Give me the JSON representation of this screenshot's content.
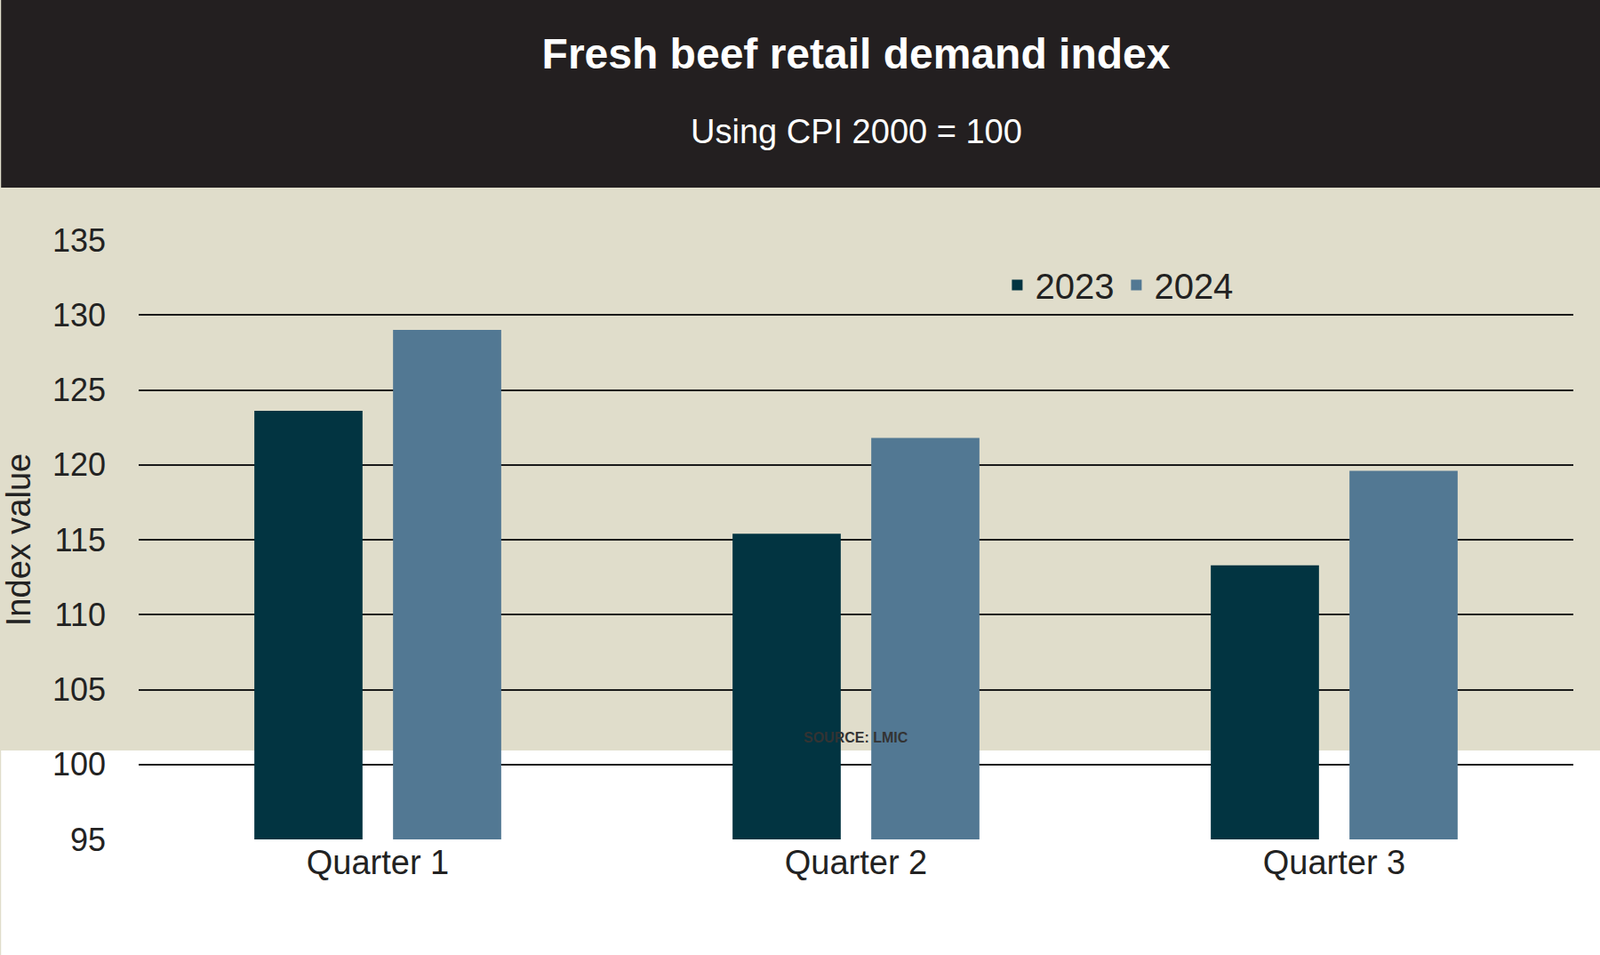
{
  "chart_data": {
    "type": "bar",
    "title": "Fresh beef retail demand index",
    "subtitle": "Using CPI 2000 = 100",
    "y_label": "Index value",
    "source": "SOURCE: LMIC",
    "categories": [
      "Quarter 1",
      "Quarter 2",
      "Quarter 3"
    ],
    "series": [
      {
        "name": "2023",
        "color": "#023441",
        "values": [
          123.6,
          115.4,
          113.3
        ]
      },
      {
        "name": "2024",
        "color": "#527893",
        "values": [
          129.0,
          121.8,
          119.6
        ]
      }
    ],
    "ylim": [
      95,
      135
    ],
    "yticks": [
      95,
      100,
      105,
      110,
      115,
      120,
      125,
      130,
      135
    ],
    "grid": true,
    "legend": "top right"
  }
}
